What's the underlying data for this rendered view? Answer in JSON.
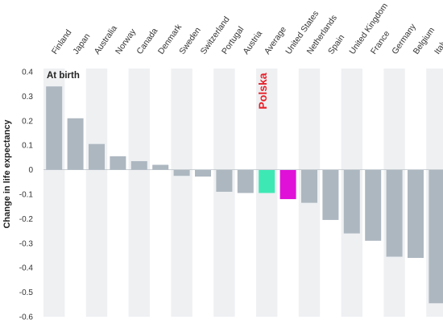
{
  "chart_data": {
    "type": "bar",
    "ylabel": "Change in life expectancy",
    "annotation": "At birth",
    "callout": {
      "text": "Polska",
      "color": "#e8202a"
    },
    "ylim": [
      -0.6,
      0.4
    ],
    "yticks": [
      {
        "value": 0.4,
        "label": "0.4"
      },
      {
        "value": 0.3,
        "label": "0.3"
      },
      {
        "value": 0.2,
        "label": "0.2"
      },
      {
        "value": 0.1,
        "label": "0.1"
      },
      {
        "value": 0,
        "label": "0"
      },
      {
        "value": -0.1,
        "label": "-0.1"
      },
      {
        "value": -0.2,
        "label": "-0.2"
      },
      {
        "value": -0.3,
        "label": "-0.3"
      },
      {
        "value": -0.4,
        "label": "-0.4"
      },
      {
        "value": -0.5,
        "label": "-0.5"
      },
      {
        "value": -0.6,
        "label": "-0.6"
      }
    ],
    "categories": [
      "Finland",
      "Japan",
      "Australia",
      "Norway",
      "Canada",
      "Denmark",
      "Sweden",
      "Switzerland",
      "Portugal",
      "Austria",
      "Average",
      "United States",
      "Netherlands",
      "Spain",
      "United Kingdom",
      "France",
      "Germany",
      "Belgium",
      "Italy"
    ],
    "values": [
      0.34,
      0.21,
      0.105,
      0.055,
      0.035,
      0.02,
      -0.025,
      -0.028,
      -0.09,
      -0.095,
      -0.095,
      -0.12,
      -0.135,
      -0.205,
      -0.26,
      -0.29,
      -0.355,
      -0.36,
      -0.545
    ],
    "colors": {
      "bar": "#adb7c0",
      "average": "#3ee8b5",
      "united_states": "#e010d8",
      "band": "#eef0f2",
      "label": "#333333"
    },
    "highlight": {
      "Average": "#3ee8b5",
      "United States": "#e010d8"
    }
  }
}
